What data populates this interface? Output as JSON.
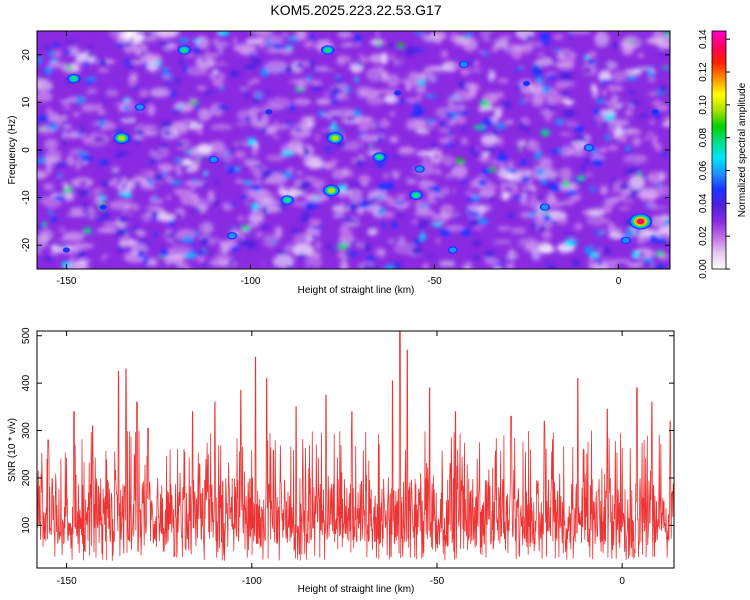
{
  "title": "KOM5.2025.223.22.53.G17",
  "chart_data": [
    {
      "type": "heatmap",
      "xlabel": "Height of straight line (km)",
      "ylabel": "Frequency (Hz)",
      "xlim": [
        -158,
        14
      ],
      "ylim": [
        -25,
        25
      ],
      "xticks": [
        -150,
        -100,
        -50,
        0
      ],
      "yticks": [
        -20,
        -10,
        0,
        10,
        20
      ],
      "colorbar": {
        "label": "Normalized spectral amplitude",
        "range": [
          0,
          0.145
        ],
        "ticks": [
          0.0,
          0.02,
          0.04,
          0.06,
          0.08,
          0.1,
          0.12,
          0.14
        ],
        "tick_labels": [
          "0.00",
          "0.02",
          "0.04",
          "0.06",
          "0.08",
          "0.10",
          "0.12",
          "0.14"
        ],
        "colormap": [
          "#ffffff",
          "#e8c8f0",
          "#c070e8",
          "#8a2be2",
          "#5020e0",
          "#1e32ff",
          "#1e90ff",
          "#00e5ff",
          "#00e08a",
          "#00d000",
          "#b0e000",
          "#ffff00",
          "#ff9000",
          "#ff2000",
          "#ff0060",
          "#ff00c8"
        ]
      },
      "hotspots": [
        {
          "x": 6,
          "y": -15,
          "amplitude": 0.14
        },
        {
          "x": -135,
          "y": 2.5,
          "amplitude": 0.1
        },
        {
          "x": -77,
          "y": 2.5,
          "amplitude": 0.1
        },
        {
          "x": -78,
          "y": -8.5,
          "amplitude": 0.1
        },
        {
          "x": -118,
          "y": 21,
          "amplitude": 0.08
        },
        {
          "x": -79,
          "y": 21,
          "amplitude": 0.08
        },
        {
          "x": -55,
          "y": -9.5,
          "amplitude": 0.08
        },
        {
          "x": -148,
          "y": 15,
          "amplitude": 0.08
        },
        {
          "x": -130,
          "y": 9,
          "amplitude": 0.07
        },
        {
          "x": -65,
          "y": -1.5,
          "amplitude": 0.08
        },
        {
          "x": -42,
          "y": 18,
          "amplitude": 0.07
        },
        {
          "x": -90,
          "y": -10.5,
          "amplitude": 0.08
        },
        {
          "x": -110,
          "y": -2,
          "amplitude": 0.07
        },
        {
          "x": -54,
          "y": -4,
          "amplitude": 0.06
        },
        {
          "x": -8,
          "y": 0.5,
          "amplitude": 0.06
        },
        {
          "x": -20,
          "y": -12,
          "amplitude": 0.06
        },
        {
          "x": -45,
          "y": -21,
          "amplitude": 0.06
        },
        {
          "x": 2,
          "y": -19,
          "amplitude": 0.07
        },
        {
          "x": -105,
          "y": -18,
          "amplitude": 0.06
        },
        {
          "x": -140,
          "y": -12,
          "amplitude": 0.05
        },
        {
          "x": -25,
          "y": 14,
          "amplitude": 0.05
        },
        {
          "x": -95,
          "y": 8,
          "amplitude": 0.05
        },
        {
          "x": -150,
          "y": -21,
          "amplitude": 0.05
        },
        {
          "x": -60,
          "y": 12,
          "amplitude": 0.05
        },
        {
          "x": 10,
          "y": 8,
          "amplitude": 0.05
        }
      ]
    },
    {
      "type": "line",
      "xlabel": "Height of straight line (km)",
      "ylabel": "SNR (10 * v/v)",
      "xlim": [
        -158,
        14
      ],
      "ylim": [
        10,
        510
      ],
      "xticks": [
        -150,
        -100,
        -50,
        0
      ],
      "yticks": [
        100,
        200,
        300,
        400,
        500
      ],
      "series": [
        {
          "name": "SNR",
          "color": "#ee3333",
          "baseline": 120,
          "noise_range": [
            20,
            320
          ],
          "peaks": [
            {
              "x": -155,
              "y": 280
            },
            {
              "x": -148,
              "y": 340
            },
            {
              "x": -143,
              "y": 310
            },
            {
              "x": -136,
              "y": 425
            },
            {
              "x": -134,
              "y": 430
            },
            {
              "x": -131,
              "y": 360
            },
            {
              "x": -128,
              "y": 305
            },
            {
              "x": -116,
              "y": 340
            },
            {
              "x": -110,
              "y": 360
            },
            {
              "x": -103,
              "y": 385
            },
            {
              "x": -99,
              "y": 455
            },
            {
              "x": -96,
              "y": 410
            },
            {
              "x": -88,
              "y": 350
            },
            {
              "x": -80,
              "y": 375
            },
            {
              "x": -73,
              "y": 340
            },
            {
              "x": -62,
              "y": 405
            },
            {
              "x": -60,
              "y": 510
            },
            {
              "x": -58,
              "y": 470
            },
            {
              "x": -52,
              "y": 390
            },
            {
              "x": -45,
              "y": 340
            },
            {
              "x": -30,
              "y": 330
            },
            {
              "x": -21,
              "y": 320
            },
            {
              "x": -12,
              "y": 410
            },
            {
              "x": -4,
              "y": 345
            },
            {
              "x": 4,
              "y": 390
            },
            {
              "x": 8,
              "y": 360
            },
            {
              "x": 13,
              "y": 320
            }
          ]
        }
      ]
    }
  ]
}
